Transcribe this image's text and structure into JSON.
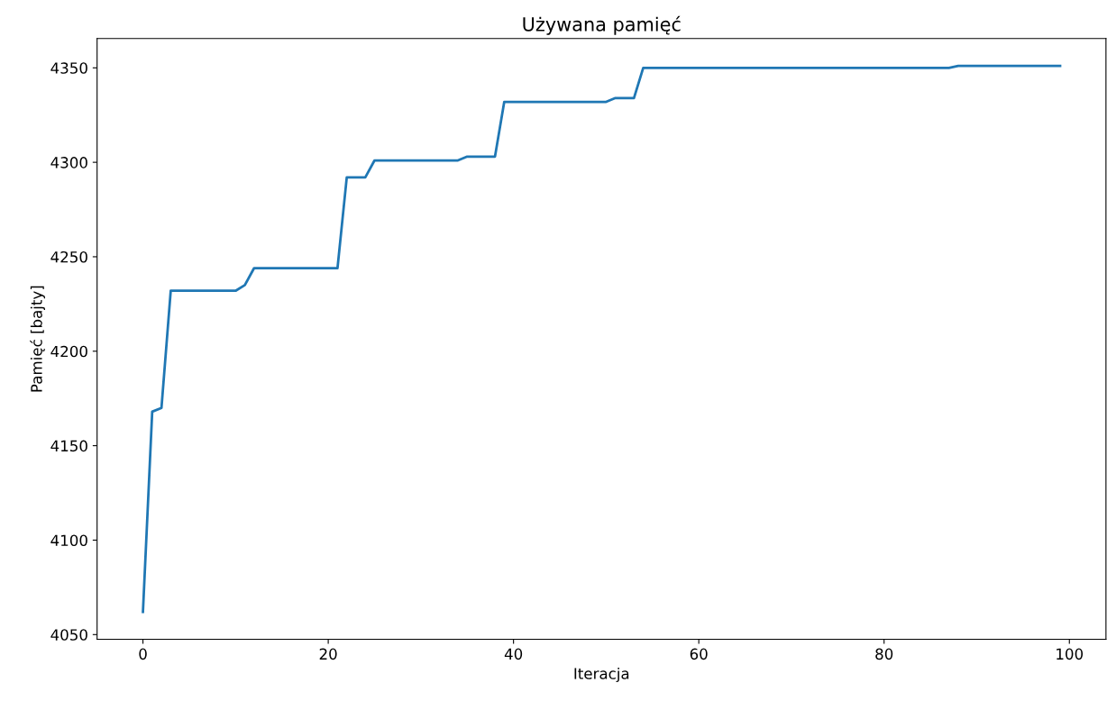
{
  "chart_data": {
    "type": "line",
    "title": "Używana pamięć",
    "xlabel": "Iteracja",
    "ylabel": "Pamięć [bajty]",
    "x": [
      0,
      1,
      2,
      3,
      10,
      11,
      12,
      21,
      22,
      24,
      25,
      34,
      35,
      38,
      39,
      50,
      51,
      53,
      54,
      87,
      88,
      99
    ],
    "series": [
      {
        "color": "#1f77b4",
        "values": [
          4062,
          4168,
          4170,
          4232,
          4232,
          4235,
          4244,
          4244,
          4292,
          4292,
          4301,
          4301,
          4303,
          4303,
          4332,
          4332,
          4334,
          4334,
          4350,
          4350,
          4351,
          4351
        ]
      }
    ],
    "xlim": [
      -4.95,
      103.95
    ],
    "xticks": [
      0,
      20,
      40,
      60,
      80,
      100
    ],
    "ylim": [
      4047.5,
      4365.5
    ],
    "yticks": [
      4050,
      4100,
      4150,
      4200,
      4250,
      4300,
      4350
    ],
    "grid": false,
    "legend": false
  }
}
